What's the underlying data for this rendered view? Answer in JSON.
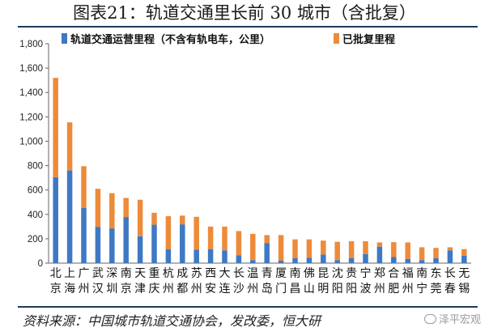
{
  "title": "图表21：轨道交通里长前 30 城市（含批复）",
  "source": "资料来源：中国城市轨道交通协会，发改委，恒大研",
  "watermark": "泽平宏观",
  "chart_data": {
    "type": "bar",
    "stacked": true,
    "categories": [
      "北京",
      "上海",
      "广州",
      "武汉",
      "深圳",
      "南京",
      "天津",
      "重庆",
      "杭州",
      "成都",
      "苏州",
      "西安",
      "大连",
      "长沙",
      "温州",
      "青岛",
      "厦门",
      "南昌",
      "佛山",
      "昆明",
      "沈阳",
      "贵阳",
      "宁波",
      "郑州",
      "合肥",
      "福州",
      "南宁",
      "东莞",
      "长春",
      "无锡"
    ],
    "series": [
      {
        "name": "轨道交通运营里程（不含有轨电车，公里）",
        "color": "#3f78c4",
        "values": [
          705,
          760,
          452,
          298,
          285,
          378,
          220,
          315,
          115,
          318,
          110,
          115,
          105,
          65,
          25,
          165,
          20,
          40,
          45,
          70,
          25,
          40,
          75,
          135,
          50,
          35,
          25,
          40,
          105,
          60
        ]
      },
      {
        "name": "已批复里程",
        "color": "#ed8b3a",
        "values": [
          815,
          395,
          343,
          312,
          289,
          157,
          300,
          98,
          270,
          72,
          270,
          185,
          195,
          198,
          215,
          65,
          210,
          155,
          150,
          115,
          150,
          140,
          105,
          35,
          122,
          135,
          105,
          85,
          25,
          55
        ]
      }
    ],
    "ylim": [
      0,
      1800
    ],
    "yticks": [
      "0",
      "200",
      "400",
      "600",
      "800",
      "1,000",
      "1,200",
      "1,400",
      "1,600",
      "1,800"
    ],
    "legend": "top"
  }
}
